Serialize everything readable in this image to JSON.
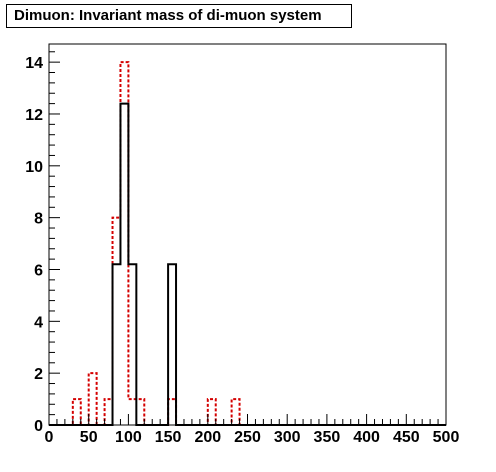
{
  "chart_data": {
    "type": "bar",
    "title": "Dimuon: Invariant mass of di-muon system",
    "xlim": [
      0,
      500
    ],
    "ylim": [
      0,
      14.7
    ],
    "bin_width": 10,
    "x_ticks": [
      "0",
      "50",
      "100",
      "150",
      "200",
      "250",
      "300",
      "350",
      "400",
      "450",
      "500"
    ],
    "y_ticks": [
      "0",
      "2",
      "4",
      "6",
      "8",
      "10",
      "12",
      "14"
    ],
    "grid": false,
    "legend": "none",
    "series": [
      {
        "style": "solid",
        "color": "#000000",
        "bin_low_edges": [
          80,
          90,
          100,
          150
        ],
        "values": [
          6.2,
          12.4,
          6.2,
          6.2
        ]
      },
      {
        "style": "dotted",
        "color": "#d40000",
        "bin_low_edges": [
          30,
          50,
          70,
          80,
          90,
          100,
          110,
          150,
          200,
          230
        ],
        "values": [
          1,
          2,
          1,
          8,
          14,
          1,
          1,
          1,
          1,
          1
        ]
      }
    ]
  }
}
